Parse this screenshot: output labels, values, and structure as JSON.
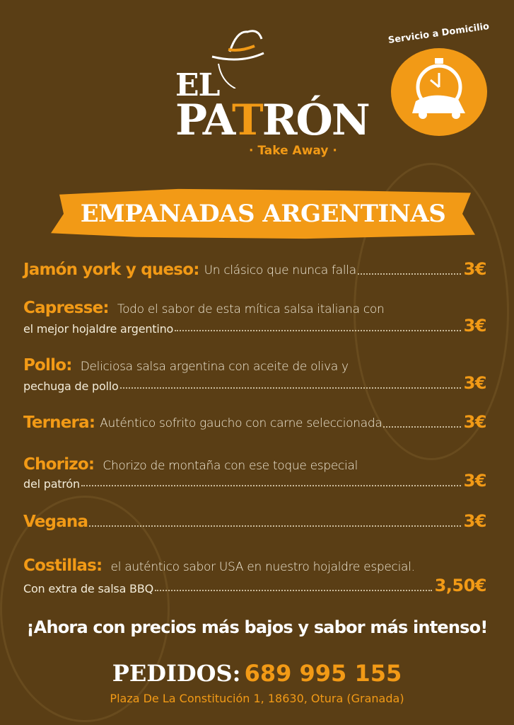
{
  "brand": {
    "line1": "EL",
    "line2_a": "PA",
    "line2_t": "T",
    "line2_b": "RÓN",
    "tagline": "· Take Away ·"
  },
  "delivery": {
    "label": "Servicio a Domicilio",
    "icon": "scooter-stopwatch-icon"
  },
  "banner": {
    "title": "EMPANADAS ARGENTINAS"
  },
  "items": [
    {
      "name": "Jamón york y queso:",
      "desc": "Un clásico que nunca falla",
      "desc2": "",
      "price": "3€"
    },
    {
      "name": "Capresse:",
      "desc": "Todo el sabor de esta mítica salsa italiana con",
      "desc2": "el mejor hojaldre argentino",
      "price": "3€"
    },
    {
      "name": "Pollo:",
      "desc": "Deliciosa salsa argentina con aceite de oliva y",
      "desc2": "pechuga de pollo",
      "price": "3€"
    },
    {
      "name": "Ternera:",
      "desc": "Auténtico sofrito gaucho con carne seleccionada",
      "desc2": "",
      "price": "3€"
    },
    {
      "name": "Chorizo:",
      "desc": "Chorizo de montaña con ese toque especial",
      "desc2": "del patrón",
      "price": "3€"
    },
    {
      "name": "Vegana",
      "desc": "",
      "desc2": "",
      "price": "3€"
    },
    {
      "name": "Costillas:",
      "desc": "el auténtico sabor USA en nuestro hojaldre especial.",
      "desc2": "Con extra de salsa BBQ",
      "price": "3,50€"
    }
  ],
  "promo": "¡Ahora con precios más bajos y sabor más intenso!",
  "orders": {
    "label": "PEDIDOS",
    "sep": ":",
    "phone": "689 995 155"
  },
  "address": "Plaza De La Constitución 1, 18630, Otura (Granada)",
  "colors": {
    "background": "#5a3e15",
    "accent": "#f29a16",
    "text": "#f3ecd9"
  }
}
